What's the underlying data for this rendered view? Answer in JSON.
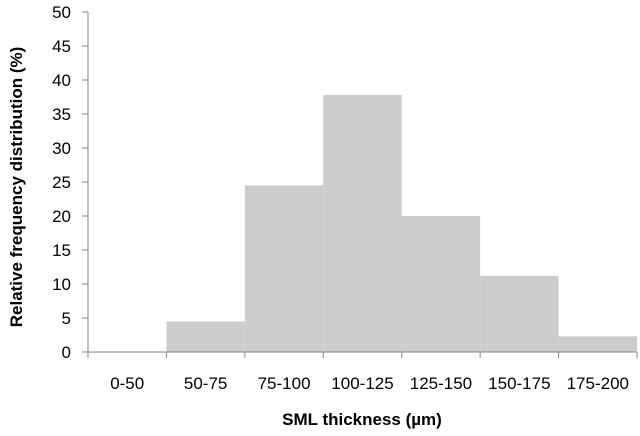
{
  "chart_data": {
    "type": "bar",
    "title": "",
    "xlabel": "SML thickness (µm)",
    "ylabel": "Relative frequency distribution (%)",
    "categories": [
      "0-50",
      "50-75",
      "75-100",
      "100-125",
      "125-150",
      "150-175",
      "175-200"
    ],
    "values": [
      0,
      4.5,
      24.5,
      37.8,
      20.0,
      11.2,
      2.3
    ],
    "ylim": [
      0,
      50
    ],
    "yticks": [
      0,
      5,
      10,
      15,
      20,
      25,
      30,
      35,
      40,
      45,
      50
    ],
    "ytick_labels": [
      "0",
      "5",
      "10",
      "15",
      "20",
      "25",
      "30",
      "35",
      "40",
      "45",
      "50"
    ],
    "grid": false,
    "legend": "none",
    "bar_color": "#cccccc",
    "axis_color": "#868686"
  }
}
